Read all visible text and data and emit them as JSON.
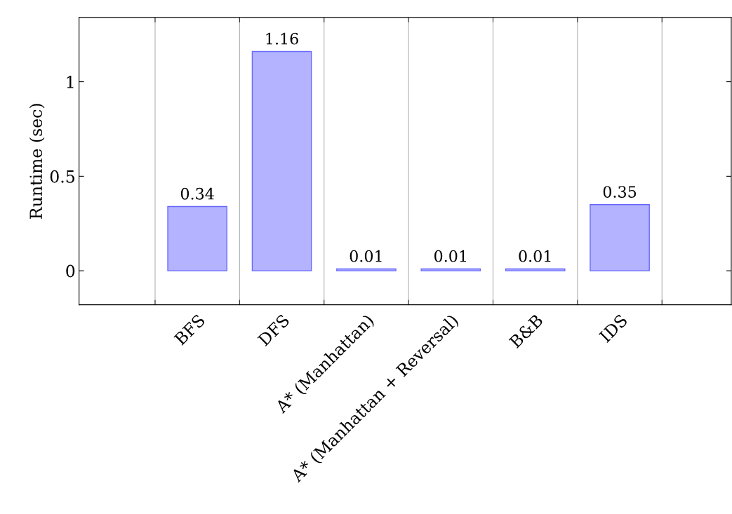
{
  "chart_data": {
    "type": "bar",
    "ylabel": "Runtime (sec)",
    "categories": [
      "BFS",
      "DFS",
      "A* (Manhattan)",
      "A* (Manhattan + Reversal)",
      "B&B",
      "IDS"
    ],
    "values": [
      0.34,
      1.16,
      0.01,
      0.01,
      0.01,
      0.35
    ],
    "color": "#b3b3ff",
    "ylim": [
      -0.18,
      1.34
    ],
    "yticks": [
      0,
      0.5,
      1
    ],
    "grid": "x",
    "data_labels": true
  }
}
